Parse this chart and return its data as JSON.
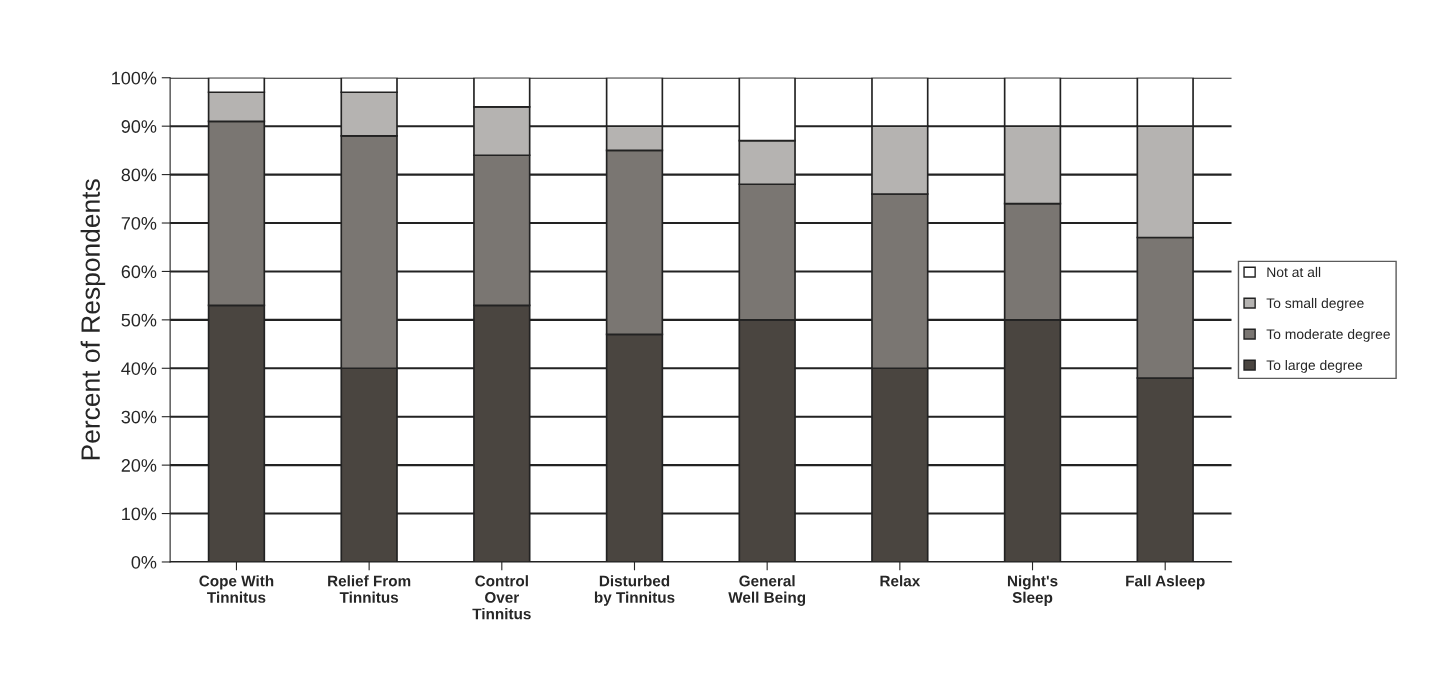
{
  "chart_data": {
    "type": "bar",
    "stacked": true,
    "ylabel": "Percent of Respondents",
    "categories": [
      "Cope With\nTinnitus",
      "Relief From\nTinnitus",
      "Control\nOver\nTinnitus",
      "Disturbed\nby Tinnitus",
      "General\nWell Being",
      "Relax",
      "Night's\nSleep",
      "Fall Asleep"
    ],
    "series": [
      {
        "name": "To large degree",
        "color": "#4a4540",
        "values": [
          53,
          40,
          53,
          47,
          50,
          40,
          50,
          38
        ]
      },
      {
        "name": "To moderate degree",
        "color": "#7a7672",
        "values": [
          38,
          48,
          31,
          38,
          28,
          36,
          24,
          29
        ]
      },
      {
        "name": "To small degree",
        "color": "#b5b3b1",
        "values": [
          6,
          9,
          10,
          5,
          9,
          14,
          16,
          23
        ]
      },
      {
        "name": "Not at all",
        "color": "#ffffff",
        "values": [
          3,
          3,
          6,
          10,
          13,
          10,
          10,
          10
        ]
      }
    ],
    "ylim": [
      0,
      100
    ],
    "yticks": [
      {
        "value": 0,
        "label": "0%"
      },
      {
        "value": 10,
        "label": "10%"
      },
      {
        "value": 20,
        "label": "20%"
      },
      {
        "value": 30,
        "label": "30%"
      },
      {
        "value": 40,
        "label": "40%"
      },
      {
        "value": 50,
        "label": "50%"
      },
      {
        "value": 60,
        "label": "60%"
      },
      {
        "value": 70,
        "label": "70%"
      },
      {
        "value": 80,
        "label": "80%"
      },
      {
        "value": 90,
        "label": "90%"
      },
      {
        "value": 100,
        "label": "100%"
      }
    ],
    "grid": "y",
    "legend": "right"
  }
}
